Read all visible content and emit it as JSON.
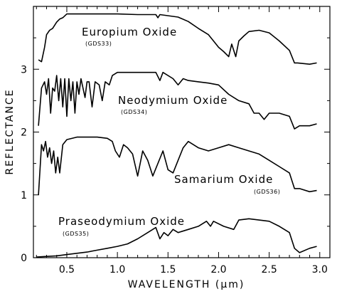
{
  "chart_data": {
    "type": "line",
    "xlabel": "WAVELENGTH (μm)",
    "ylabel": "REFLECTANCE",
    "xlim": [
      0.2,
      3.0
    ],
    "ylim": [
      0,
      4.0
    ],
    "x_ticks": [
      "0.5",
      "1.0",
      "1.5",
      "2.0",
      "2.5",
      "3.0"
    ],
    "y_ticks": [
      "0",
      "1",
      "2",
      "3"
    ],
    "grid": false,
    "series": [
      {
        "name": "Europium Oxide",
        "code": "(GDS33)",
        "points": [
          [
            0.22,
            3.15
          ],
          [
            0.25,
            3.12
          ],
          [
            0.28,
            3.35
          ],
          [
            0.3,
            3.55
          ],
          [
            0.33,
            3.62
          ],
          [
            0.36,
            3.65
          ],
          [
            0.4,
            3.75
          ],
          [
            0.43,
            3.8
          ],
          [
            0.46,
            3.82
          ],
          [
            0.5,
            3.88
          ],
          [
            0.55,
            3.88
          ],
          [
            0.6,
            3.88
          ],
          [
            0.8,
            3.88
          ],
          [
            1.0,
            3.88
          ],
          [
            1.2,
            3.87
          ],
          [
            1.38,
            3.87
          ],
          [
            1.4,
            3.82
          ],
          [
            1.42,
            3.87
          ],
          [
            1.6,
            3.83
          ],
          [
            1.7,
            3.76
          ],
          [
            1.8,
            3.65
          ],
          [
            1.9,
            3.55
          ],
          [
            1.95,
            3.45
          ],
          [
            2.0,
            3.35
          ],
          [
            2.05,
            3.28
          ],
          [
            2.1,
            3.2
          ],
          [
            2.13,
            3.4
          ],
          [
            2.17,
            3.2
          ],
          [
            2.2,
            3.45
          ],
          [
            2.25,
            3.53
          ],
          [
            2.3,
            3.6
          ],
          [
            2.4,
            3.62
          ],
          [
            2.5,
            3.58
          ],
          [
            2.6,
            3.45
          ],
          [
            2.7,
            3.3
          ],
          [
            2.75,
            3.1
          ],
          [
            2.78,
            3.1
          ],
          [
            2.9,
            3.08
          ],
          [
            2.97,
            3.1
          ]
        ]
      },
      {
        "name": "Neodymium Oxide",
        "code": "(GDS34)",
        "points": [
          [
            0.22,
            2.1
          ],
          [
            0.25,
            2.7
          ],
          [
            0.28,
            2.8
          ],
          [
            0.3,
            2.6
          ],
          [
            0.32,
            2.85
          ],
          [
            0.34,
            2.3
          ],
          [
            0.36,
            2.7
          ],
          [
            0.38,
            2.65
          ],
          [
            0.4,
            2.9
          ],
          [
            0.42,
            2.5
          ],
          [
            0.44,
            2.85
          ],
          [
            0.46,
            2.4
          ],
          [
            0.48,
            2.85
          ],
          [
            0.5,
            2.25
          ],
          [
            0.52,
            2.85
          ],
          [
            0.54,
            2.5
          ],
          [
            0.56,
            2.8
          ],
          [
            0.58,
            2.3
          ],
          [
            0.6,
            2.8
          ],
          [
            0.62,
            2.6
          ],
          [
            0.64,
            2.85
          ],
          [
            0.68,
            2.55
          ],
          [
            0.7,
            2.8
          ],
          [
            0.72,
            2.8
          ],
          [
            0.75,
            2.4
          ],
          [
            0.78,
            2.8
          ],
          [
            0.82,
            2.75
          ],
          [
            0.85,
            2.5
          ],
          [
            0.88,
            2.8
          ],
          [
            0.92,
            2.75
          ],
          [
            0.95,
            2.9
          ],
          [
            1.0,
            2.95
          ],
          [
            1.2,
            2.95
          ],
          [
            1.38,
            2.95
          ],
          [
            1.42,
            2.82
          ],
          [
            1.45,
            2.95
          ],
          [
            1.55,
            2.85
          ],
          [
            1.6,
            2.75
          ],
          [
            1.65,
            2.85
          ],
          [
            1.7,
            2.82
          ],
          [
            1.8,
            2.8
          ],
          [
            1.9,
            2.78
          ],
          [
            2.0,
            2.75
          ],
          [
            2.1,
            2.6
          ],
          [
            2.2,
            2.5
          ],
          [
            2.3,
            2.45
          ],
          [
            2.35,
            2.3
          ],
          [
            2.4,
            2.3
          ],
          [
            2.45,
            2.2
          ],
          [
            2.5,
            2.3
          ],
          [
            2.6,
            2.3
          ],
          [
            2.7,
            2.25
          ],
          [
            2.75,
            2.05
          ],
          [
            2.8,
            2.1
          ],
          [
            2.9,
            2.1
          ],
          [
            2.97,
            2.13
          ]
        ]
      },
      {
        "name": "Samarium Oxide",
        "code": "(GDS36)",
        "points": [
          [
            0.22,
            1.0
          ],
          [
            0.25,
            1.8
          ],
          [
            0.27,
            1.7
          ],
          [
            0.29,
            1.85
          ],
          [
            0.31,
            1.6
          ],
          [
            0.33,
            1.75
          ],
          [
            0.35,
            1.5
          ],
          [
            0.37,
            1.7
          ],
          [
            0.39,
            1.35
          ],
          [
            0.41,
            1.6
          ],
          [
            0.43,
            1.35
          ],
          [
            0.46,
            1.8
          ],
          [
            0.5,
            1.88
          ],
          [
            0.6,
            1.92
          ],
          [
            0.8,
            1.92
          ],
          [
            0.9,
            1.9
          ],
          [
            0.95,
            1.85
          ],
          [
            0.98,
            1.7
          ],
          [
            1.02,
            1.6
          ],
          [
            1.06,
            1.8
          ],
          [
            1.1,
            1.75
          ],
          [
            1.15,
            1.65
          ],
          [
            1.2,
            1.3
          ],
          [
            1.25,
            1.7
          ],
          [
            1.3,
            1.55
          ],
          [
            1.35,
            1.3
          ],
          [
            1.4,
            1.5
          ],
          [
            1.45,
            1.7
          ],
          [
            1.5,
            1.4
          ],
          [
            1.55,
            1.35
          ],
          [
            1.6,
            1.55
          ],
          [
            1.65,
            1.75
          ],
          [
            1.7,
            1.85
          ],
          [
            1.8,
            1.75
          ],
          [
            1.9,
            1.7
          ],
          [
            2.0,
            1.75
          ],
          [
            2.1,
            1.8
          ],
          [
            2.2,
            1.75
          ],
          [
            2.3,
            1.7
          ],
          [
            2.4,
            1.65
          ],
          [
            2.5,
            1.55
          ],
          [
            2.6,
            1.45
          ],
          [
            2.7,
            1.35
          ],
          [
            2.75,
            1.1
          ],
          [
            2.8,
            1.1
          ],
          [
            2.9,
            1.05
          ],
          [
            2.97,
            1.07
          ]
        ]
      },
      {
        "name": "Praseodymium Oxide",
        "code": "(GDS35)",
        "points": [
          [
            0.2,
            0.01
          ],
          [
            0.3,
            0.02
          ],
          [
            0.4,
            0.03
          ],
          [
            0.5,
            0.05
          ],
          [
            0.6,
            0.07
          ],
          [
            0.7,
            0.09
          ],
          [
            0.8,
            0.12
          ],
          [
            0.9,
            0.15
          ],
          [
            1.0,
            0.18
          ],
          [
            1.1,
            0.22
          ],
          [
            1.2,
            0.3
          ],
          [
            1.3,
            0.4
          ],
          [
            1.38,
            0.48
          ],
          [
            1.42,
            0.3
          ],
          [
            1.46,
            0.4
          ],
          [
            1.5,
            0.35
          ],
          [
            1.55,
            0.45
          ],
          [
            1.6,
            0.4
          ],
          [
            1.7,
            0.45
          ],
          [
            1.8,
            0.5
          ],
          [
            1.88,
            0.58
          ],
          [
            1.92,
            0.5
          ],
          [
            1.95,
            0.58
          ],
          [
            2.05,
            0.5
          ],
          [
            2.15,
            0.45
          ],
          [
            2.2,
            0.6
          ],
          [
            2.3,
            0.62
          ],
          [
            2.4,
            0.6
          ],
          [
            2.5,
            0.58
          ],
          [
            2.6,
            0.5
          ],
          [
            2.7,
            0.4
          ],
          [
            2.75,
            0.15
          ],
          [
            2.8,
            0.08
          ],
          [
            2.9,
            0.15
          ],
          [
            2.97,
            0.18
          ]
        ]
      }
    ]
  }
}
